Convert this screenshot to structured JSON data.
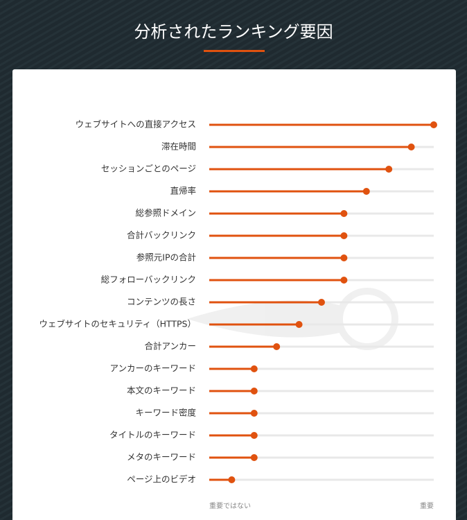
{
  "chart_data": {
    "type": "lollipop",
    "title": "分析されたランキング要因",
    "categories": [
      "ウェブサイトへの直接アクセス",
      "滞在時間",
      "セッションごとのページ",
      "直帰率",
      "総参照ドメイン",
      "合計バックリンク",
      "参照元IPの合計",
      "総フォローバックリンク",
      "コンテンツの長さ",
      "ウェブサイトのセキュリティ（HTTPS）",
      "合計アンカー",
      "アンカーのキーワード",
      "本文のキーワード",
      "キーワード密度",
      "タイトルのキーワード",
      "メタのキーワード",
      "ページ上のビデオ"
    ],
    "values": [
      100,
      90,
      80,
      70,
      60,
      60,
      60,
      60,
      50,
      40,
      30,
      20,
      20,
      20,
      20,
      20,
      10
    ],
    "color": "#e0520f",
    "xlim": [
      0,
      100
    ],
    "xticks": [
      {
        "value": 0,
        "label": "重要ではない"
      },
      {
        "value": 100,
        "label": "重要"
      }
    ]
  }
}
